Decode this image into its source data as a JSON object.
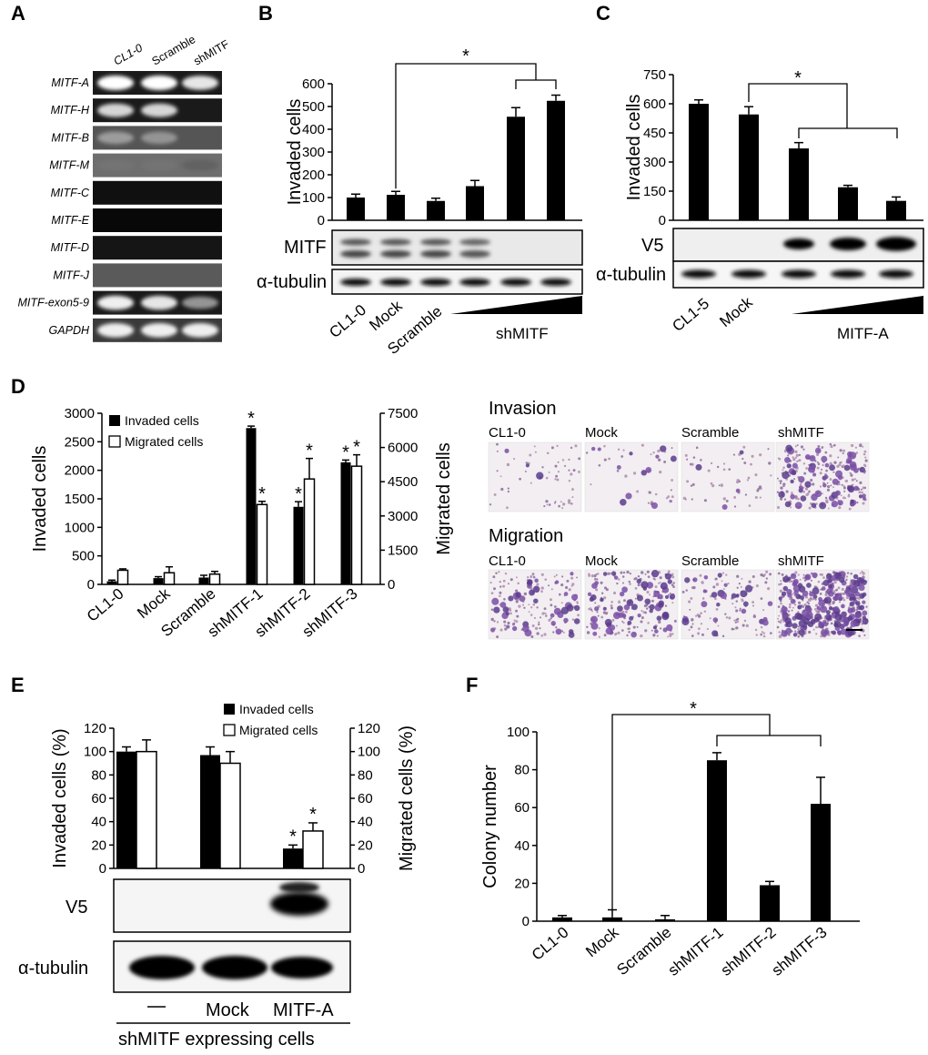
{
  "panel_letters": [
    "A",
    "B",
    "C",
    "D",
    "E",
    "F"
  ],
  "panel_a": {
    "lane_labels": [
      "CL1-0",
      "Scramble",
      "shMITF"
    ],
    "rows": [
      {
        "label": "MITF-A",
        "bands": [
          1,
          1,
          0.85
        ],
        "bg": "#1a1a1a"
      },
      {
        "label": "MITF-H",
        "bands": [
          0.75,
          0.75,
          0
        ],
        "bg": "#1a1a1a"
      },
      {
        "label": "MITF-B",
        "bands": [
          0.4,
          0.35,
          0
        ],
        "bg": "#555555"
      },
      {
        "label": "MITF-M",
        "bands": [
          0.15,
          0.15,
          0.05
        ],
        "bg": "#6e6e6e"
      },
      {
        "label": "MITF-C",
        "bands": [
          0,
          0,
          0
        ],
        "bg": "#101010"
      },
      {
        "label": "MITF-E",
        "bands": [
          0,
          0,
          0
        ],
        "bg": "#080808"
      },
      {
        "label": "MITF-D",
        "bands": [
          0,
          0,
          0
        ],
        "bg": "#151515"
      },
      {
        "label": "MITF-J",
        "bands": [
          0,
          0,
          0
        ],
        "bg": "#5a5a5a"
      },
      {
        "label": "MITF-exon5-9",
        "bands": [
          0.9,
          0.85,
          0.35
        ],
        "bg": "#1a1a1a"
      },
      {
        "label": "GAPDH",
        "bands": [
          0.9,
          0.9,
          0.9
        ],
        "bg": "#3a3a3a"
      }
    ]
  },
  "panel_b": {
    "blot_labels": [
      "MITF",
      "α-tubulin"
    ],
    "x_labels": [
      "CL1-0",
      "Mock",
      "Scramble"
    ],
    "wedge_label": "shMITF",
    "star": "*"
  },
  "panel_c": {
    "blot_labels": [
      "V5",
      "α-tubulin"
    ],
    "x_labels": [
      "CL1-5",
      "Mock"
    ],
    "wedge_label": "MITF-A",
    "star": "*"
  },
  "panel_d": {
    "image_titles": [
      "Invasion",
      "Migration"
    ],
    "image_labels": [
      "CL1-0",
      "Mock",
      "Scramble",
      "shMITF"
    ],
    "star": "*"
  },
  "panel_e": {
    "blot_labels": [
      "V5",
      "α-tubulin"
    ],
    "x_labels": [
      "—",
      "Mock",
      "MITF-A"
    ],
    "group_label": "shMITF expressing cells",
    "star": "*"
  },
  "panel_f": {
    "star": "*"
  },
  "chart_data": [
    {
      "panel": "B",
      "type": "bar",
      "categories": [
        "CL1-0",
        "Mock",
        "Scramble",
        "",
        "",
        ""
      ],
      "values": [
        100,
        112,
        85,
        150,
        455,
        525
      ],
      "errors": [
        15,
        15,
        12,
        25,
        40,
        25
      ],
      "ylabel": "Invaded cells",
      "ylim": [
        0,
        600
      ],
      "yticks": [
        0,
        100,
        200,
        300,
        400,
        500,
        600
      ],
      "bar_color": "#000000"
    },
    {
      "panel": "C",
      "type": "bar",
      "categories": [
        "CL1-5",
        "Mock",
        "",
        "",
        ""
      ],
      "values": [
        600,
        545,
        370,
        170,
        100
      ],
      "errors": [
        20,
        40,
        30,
        10,
        20
      ],
      "ylabel": "Invaded cells",
      "ylim": [
        0,
        750
      ],
      "yticks": [
        0,
        150,
        300,
        450,
        600,
        750
      ],
      "bar_color": "#000000"
    },
    {
      "panel": "D",
      "type": "bar",
      "categories": [
        "CL1-0",
        "Mock",
        "Scramble",
        "shMITF-1",
        "shMITF-2",
        "shMITF-3"
      ],
      "series": [
        {
          "name": "Invaded cells",
          "axis": "left",
          "values": [
            55,
            110,
            120,
            2740,
            1360,
            2140
          ],
          "errors": [
            20,
            25,
            40,
            35,
            90,
            40
          ],
          "color": "#000000"
        },
        {
          "name": "Migrated cells",
          "axis": "right",
          "values": [
            620,
            510,
            450,
            3500,
            4620,
            5180
          ],
          "errors": [
            60,
            260,
            120,
            140,
            900,
            500
          ],
          "color": "#ffffff"
        }
      ],
      "ylabel": "Invaded cells",
      "ylim": [
        0,
        3000
      ],
      "yticks": [
        0,
        500,
        1000,
        1500,
        2000,
        2500,
        3000
      ],
      "y2label": "Migrated cells",
      "y2lim": [
        0,
        7500
      ],
      "y2ticks": [
        0,
        1500,
        3000,
        4500,
        6000,
        7500
      ],
      "legend": "top-left"
    },
    {
      "panel": "E",
      "type": "bar",
      "categories": [
        "—",
        "Mock",
        "MITF-A"
      ],
      "series": [
        {
          "name": "Invaded cells",
          "axis": "left",
          "values": [
            100,
            97,
            17
          ],
          "errors": [
            4,
            7,
            3
          ],
          "color": "#000000"
        },
        {
          "name": "Migrated cells",
          "axis": "right",
          "values": [
            100,
            90,
            32
          ],
          "errors": [
            10,
            10,
            7
          ],
          "color": "#ffffff"
        }
      ],
      "ylabel": "Invaded cells (%)",
      "ylim": [
        0,
        120
      ],
      "yticks": [
        0,
        20,
        40,
        60,
        80,
        100,
        120
      ],
      "y2label": "Migrated cells (%)",
      "y2lim": [
        0,
        120
      ],
      "y2ticks": [
        0,
        20,
        40,
        60,
        80,
        100,
        120
      ],
      "legend": "top-right"
    },
    {
      "panel": "F",
      "type": "bar",
      "categories": [
        "CL1-0",
        "Mock",
        "Scramble",
        "shMITF-1",
        "shMITF-2",
        "shMITF-3"
      ],
      "values": [
        2,
        2,
        1,
        85,
        19,
        62
      ],
      "errors": [
        1,
        4,
        2,
        4,
        2,
        14
      ],
      "ylabel": "Colony number",
      "ylim": [
        0,
        100
      ],
      "yticks": [
        0,
        20,
        40,
        60,
        80,
        100
      ],
      "bar_color": "#000000"
    }
  ]
}
